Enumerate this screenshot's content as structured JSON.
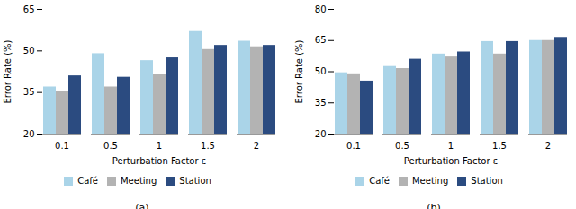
{
  "chart_data": [
    {
      "type": "bar",
      "title": "(a)",
      "categories": [
        "0.1",
        "0.5",
        "1",
        "1.5",
        "2"
      ],
      "series": [
        {
          "name": "Café",
          "color": "#aad4e8",
          "values": [
            37.0,
            49.0,
            46.5,
            57.0,
            53.5
          ]
        },
        {
          "name": "Meeting",
          "color": "#b3b3b3",
          "values": [
            35.5,
            37.0,
            41.5,
            50.5,
            51.5
          ]
        },
        {
          "name": "Station",
          "color": "#2b4b80",
          "values": [
            41.0,
            40.5,
            47.5,
            52.0,
            52.0
          ]
        }
      ],
      "xlabel": "Perturbation Factor ε",
      "ylabel": "Error Rate (%)",
      "ylim": [
        20,
        65
      ],
      "yticks": [
        20,
        35,
        50,
        65
      ],
      "grid": false,
      "legend": "bottom"
    },
    {
      "type": "bar",
      "title": "(b)",
      "categories": [
        "0.1",
        "0.5",
        "1",
        "1.5",
        "2"
      ],
      "series": [
        {
          "name": "Café",
          "color": "#aad4e8",
          "values": [
            49.5,
            52.5,
            58.5,
            64.5,
            65.0
          ]
        },
        {
          "name": "Meeting",
          "color": "#b3b3b3",
          "values": [
            49.0,
            51.5,
            57.5,
            58.5,
            65.0
          ]
        },
        {
          "name": "Station",
          "color": "#2b4b80",
          "values": [
            45.5,
            56.0,
            59.5,
            64.5,
            66.5
          ]
        }
      ],
      "xlabel": "Perturbation Factor ε",
      "ylabel": "Error Rate (%)",
      "ylim": [
        20,
        80
      ],
      "yticks": [
        20,
        35,
        50,
        65,
        80
      ],
      "grid": false,
      "legend": "bottom"
    }
  ]
}
